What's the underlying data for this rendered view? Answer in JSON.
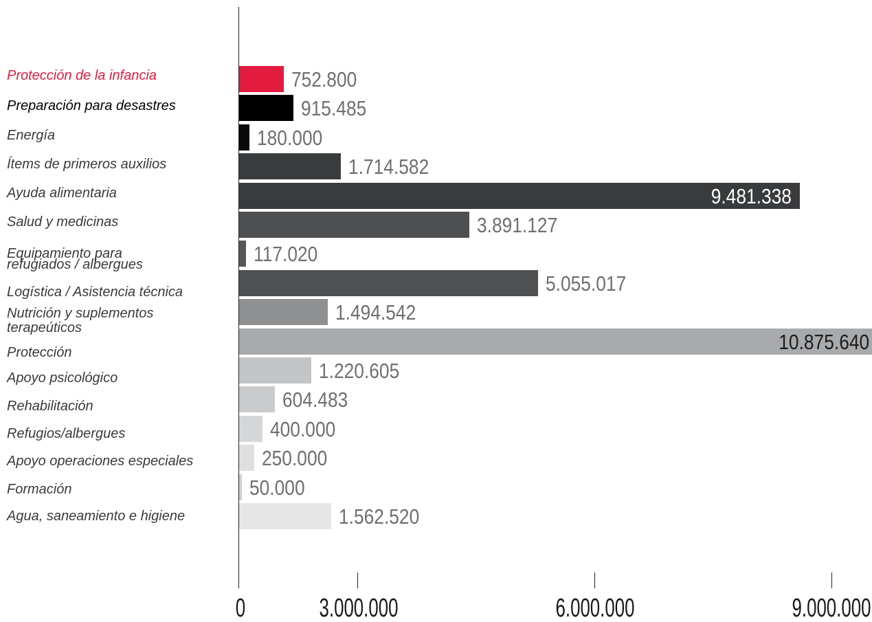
{
  "chart_data": {
    "type": "bar",
    "orientation": "horizontal",
    "categories": [
      "Protección de la infancia",
      "Preparación para desastres",
      "Energía",
      "Ítems de primeros auxilios",
      "Ayuda alimentaria",
      "Salud y medicinas",
      "Equipamiento para refugiados / albergues",
      "Logística / Asistencia técnica",
      "Nutrición y suplementos terapeúticos",
      "Protección",
      "Apoyo psicológico",
      "Rehabilitación",
      "Refugios/albergues",
      "Apoyo operaciones especiales",
      "Formación",
      "Agua, saneamiento e higiene"
    ],
    "values": [
      752800,
      915485,
      180000,
      1714582,
      9481338,
      3891127,
      117020,
      5055017,
      1494542,
      10875640,
      1220605,
      604483,
      400000,
      250000,
      50000,
      1562520
    ],
    "data_labels": [
      "752.800",
      "915.485",
      "180.000",
      "1.714.582",
      "9.481.338",
      "3.891.127",
      "117.020",
      "5.055.017",
      "1.494.542",
      "10.875.640",
      "1.220.605",
      "604.483",
      "400.000",
      "250.000",
      "50.000",
      "1.562.520"
    ],
    "colors": [
      "#e31b3e",
      "#000000",
      "#0a0a0a",
      "#393b3d",
      "#393b3d",
      "#4e4f51",
      "#565759",
      "#4f5052",
      "#8f9092",
      "#a9aaac",
      "#c3c4c6",
      "#cacbcc",
      "#d5d6d7",
      "#dedfe0",
      "#cfd0d1",
      "#e6e6e6"
    ],
    "xtick_labels": [
      "0",
      "3.000.000",
      "6.000.000",
      "9.000.000"
    ],
    "xlim": [
      0,
      10700000
    ],
    "grid": false,
    "legend": false
  }
}
